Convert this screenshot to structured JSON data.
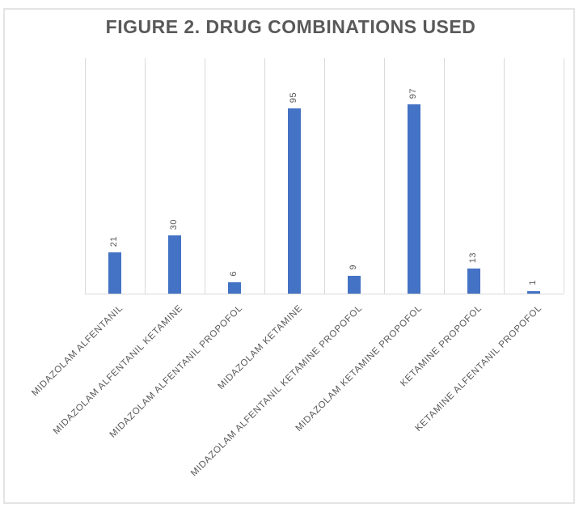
{
  "chart_data": {
    "type": "bar",
    "title": "FIGURE 2. DRUG COMBINATIONS USED",
    "categories": [
      "MIDAZOLAM ALFENTANIL",
      "MIDAZOLAM ALFENTANIL KETAMINE",
      "MIDAZOLAM ALFENTANIL PROPOFOL",
      "MIDAZOLAM KETAMINE",
      "MIDAZOLAM ALFENTANIL KETAMINE PROPOFOL",
      "MIDAZOLAM KETAMINE PROPOFOL",
      "KETAMINE PROPOFOL",
      "KETAMINE ALFENTANIL PROPOFOL"
    ],
    "values": [
      21,
      30,
      6,
      95,
      9,
      97,
      13,
      1
    ],
    "data_labels_shown": true,
    "data_label_rotation_deg": 90,
    "category_label_rotation_deg": 45,
    "xlabel": "",
    "ylabel": "",
    "ylim": [
      0,
      120
    ],
    "y_axis_labels_shown": false,
    "legend_position": "none",
    "grid": "vertical-category-separators"
  },
  "colors": {
    "bar": "#4472C4",
    "title_text": "#595959",
    "label_text": "#595959",
    "gridline": "#D9D9D9",
    "frame_border": "#E4E4E4"
  }
}
